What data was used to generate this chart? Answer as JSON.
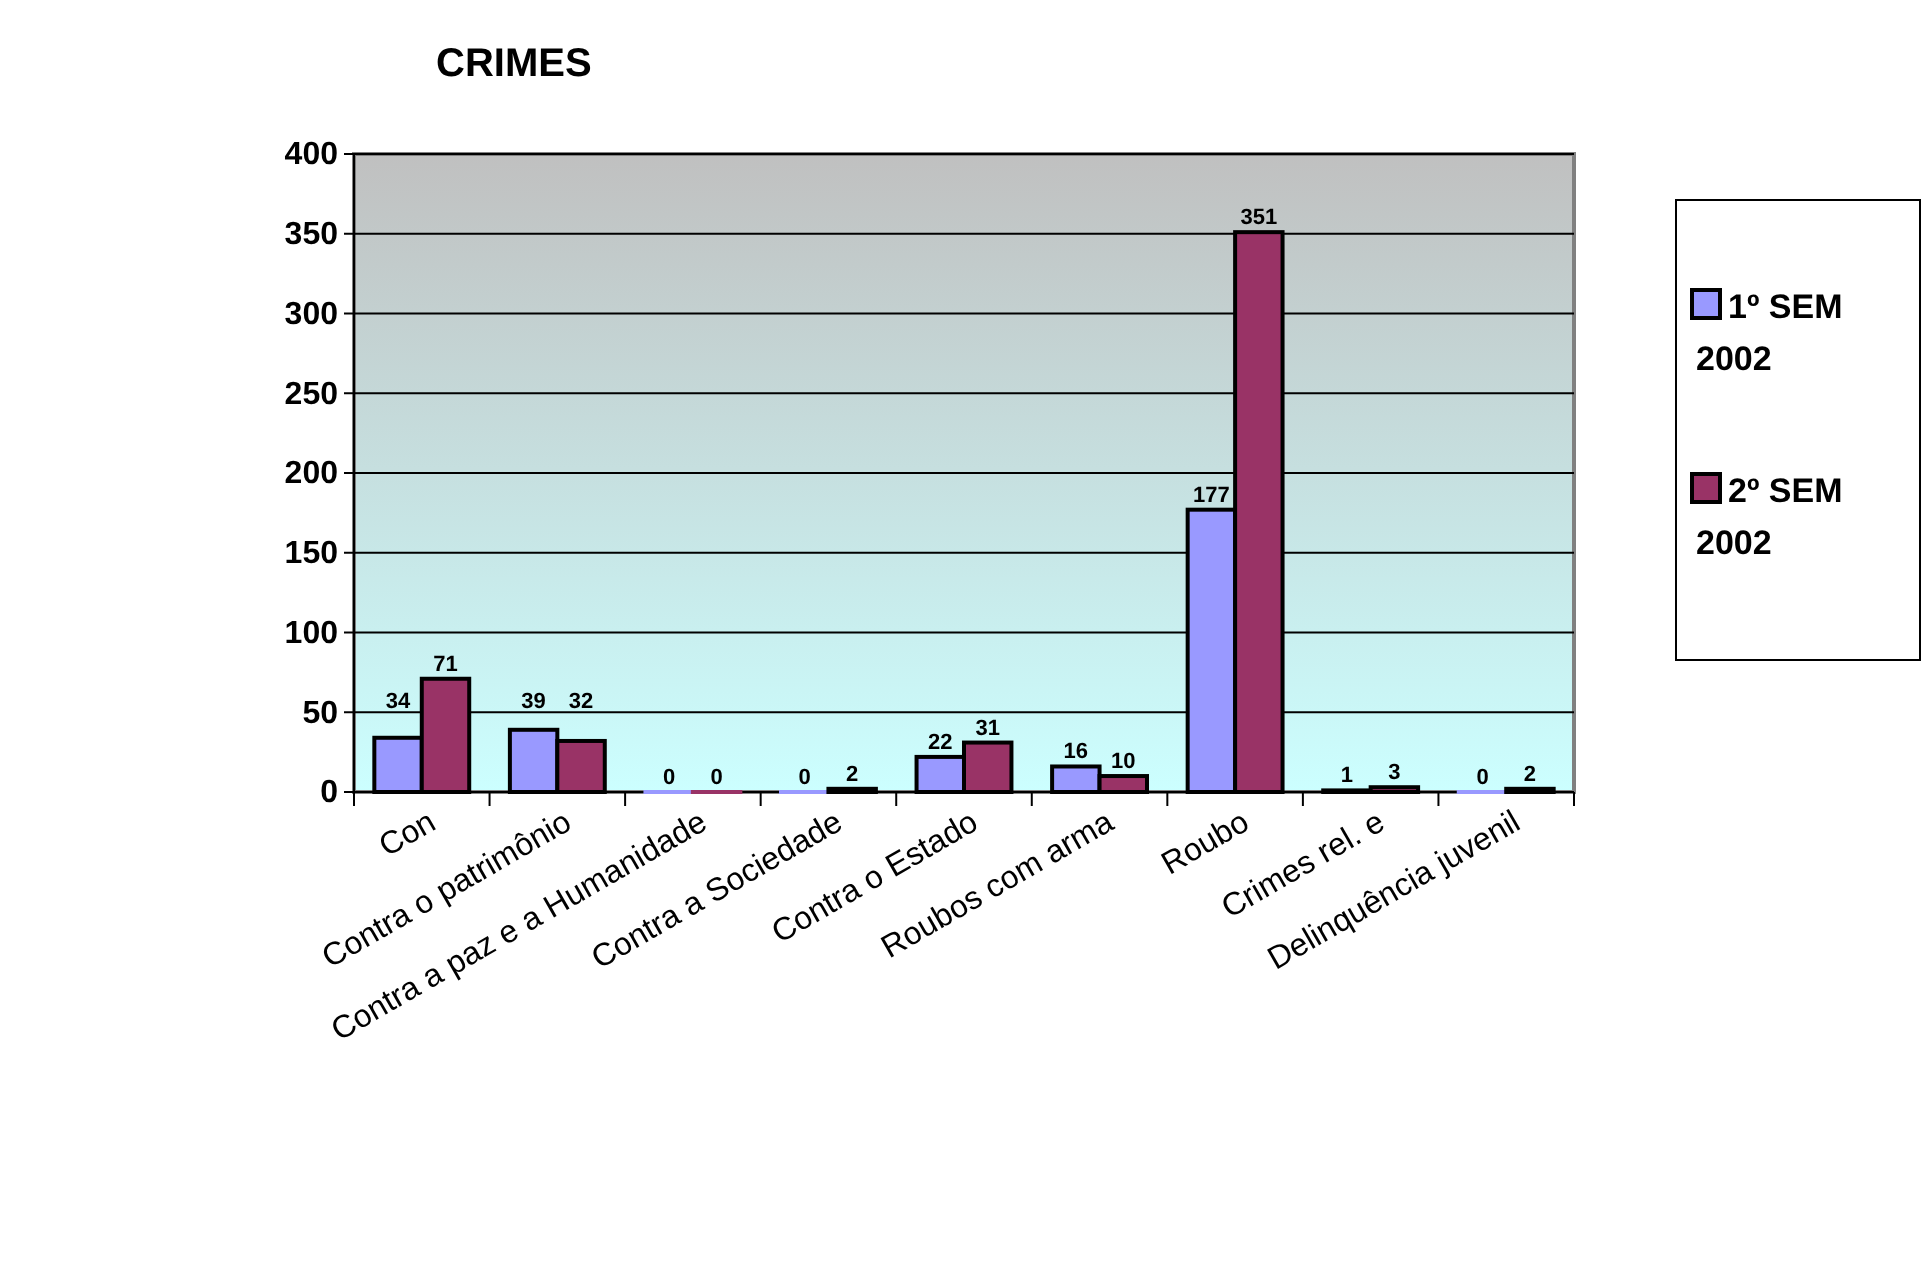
{
  "chart_data": {
    "type": "bar",
    "title": "CRIMES",
    "categories": [
      "Con",
      "Contra o patrimônio",
      "Contra a paz e a Humanidade",
      "Contra a Sociedade",
      "Contra o Estado",
      "Roubos com arma",
      "Roubo",
      "Crimes rel. e",
      "Delinquência juvenil"
    ],
    "series": [
      {
        "name": "1º SEM 2002",
        "color": "#9999ff",
        "values": [
          34,
          39,
          0,
          0,
          22,
          16,
          177,
          1,
          0
        ]
      },
      {
        "name": "2º SEM 2002",
        "color": "#993366",
        "values": [
          71,
          32,
          0,
          2,
          31,
          10,
          351,
          3,
          2
        ]
      }
    ],
    "ylim": [
      0,
      400
    ],
    "yticks": [
      0,
      50,
      100,
      150,
      200,
      250,
      300,
      350,
      400
    ],
    "grid": "y",
    "legend": "right",
    "data_labels": true
  }
}
